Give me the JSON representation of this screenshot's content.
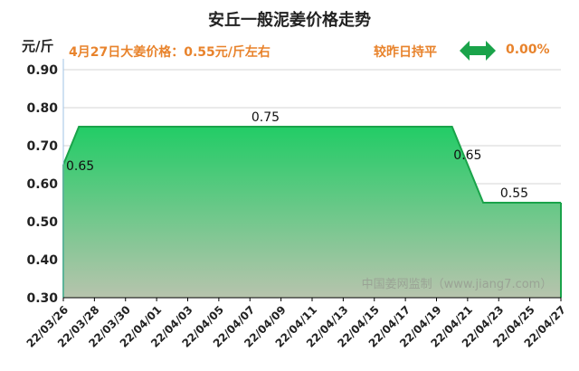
{
  "title": "安丘一般泥姜价格走势",
  "header": {
    "unit": "元/斤",
    "price_text": "4月27日大姜价格：0.55元/斤左右",
    "compare_label": "较昨日持平",
    "change_pct": "0.00%",
    "compare_icon": "double-arrow-icon"
  },
  "watermark": "中国姜网监制（www.jiang7.com）",
  "colors": {
    "area_top": "#22cc66",
    "area_bottom": "#b7c4ad",
    "line": "#1aa34a",
    "price_text": "#e8832c"
  },
  "chart_data": {
    "type": "area",
    "title": "安丘一般泥姜价格走势",
    "ylabel": "元/斤",
    "ylim": [
      0.3,
      0.9
    ],
    "yticks": [
      "0.90",
      "0.80",
      "0.70",
      "0.60",
      "0.50",
      "0.40",
      "0.30"
    ],
    "xticks": [
      "22/03/26",
      "22/03/28",
      "22/03/30",
      "22/04/01",
      "22/04/03",
      "22/04/05",
      "22/04/07",
      "22/04/09",
      "22/04/11",
      "22/04/13",
      "22/04/15",
      "22/04/17",
      "22/04/19",
      "22/04/21",
      "22/04/23",
      "22/04/25",
      "22/04/27"
    ],
    "points": [
      {
        "x": "22/03/26",
        "y": 0.65
      },
      {
        "x": "22/03/27",
        "y": 0.75
      },
      {
        "x": "22/04/20",
        "y": 0.75
      },
      {
        "x": "22/04/22",
        "y": 0.55
      },
      {
        "x": "22/04/27",
        "y": 0.55
      }
    ],
    "data_labels": [
      {
        "x": "22/03/26",
        "y": 0.65,
        "text": "0.65"
      },
      {
        "x": "22/04/08",
        "y": 0.75,
        "text": "0.75"
      },
      {
        "x": "22/04/21",
        "y": 0.65,
        "text": "0.65"
      },
      {
        "x": "22/04/24",
        "y": 0.55,
        "text": "0.55"
      }
    ],
    "grid": true
  }
}
